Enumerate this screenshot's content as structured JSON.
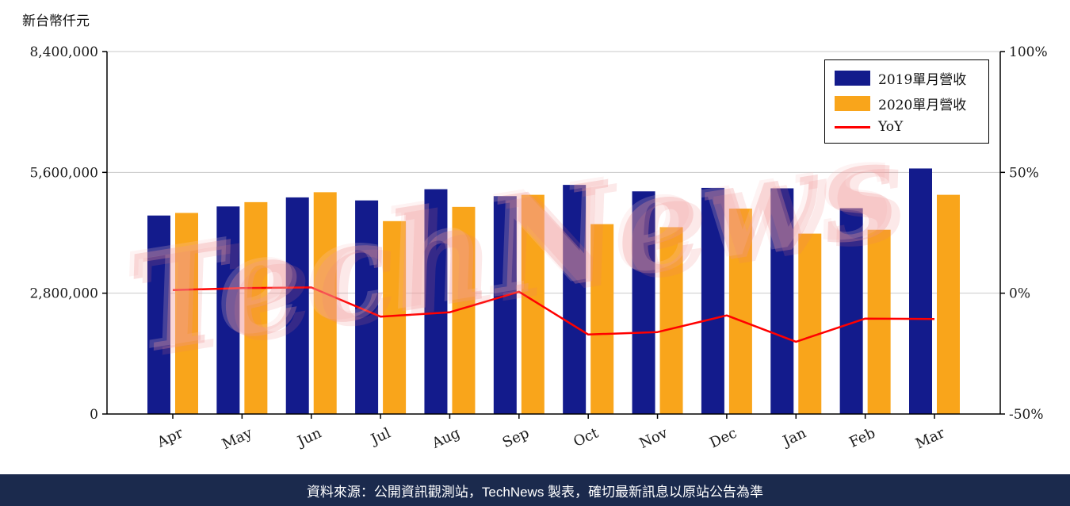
{
  "unit_label": "新台幣仟元",
  "watermark_text": "TechNews",
  "footer": {
    "text": "資料來源：公開資訊觀測站，TechNews 製表，確切最新訊息以原站公告為準"
  },
  "colors": {
    "bar_2019": "#131B8C",
    "bar_2020": "#F9A51B",
    "yoy_line": "#FF0000",
    "footer_bg": "#1B2A4D",
    "grid": "#C9C9C9",
    "axis": "#000000",
    "watermark": "#F09696"
  },
  "chart_data": {
    "type": "bar",
    "categories": [
      "Apr",
      "May",
      "Jun",
      "Jul",
      "Aug",
      "Sep",
      "Oct",
      "Nov",
      "Dec",
      "Jan",
      "Feb",
      "Mar"
    ],
    "series": [
      {
        "name": "2019單月營收",
        "type": "bar",
        "axis": "left",
        "color": "#131B8C",
        "values": [
          4600000,
          4810000,
          5020000,
          4950000,
          5210000,
          5050000,
          5310000,
          5160000,
          5240000,
          5230000,
          4770000,
          5690000
        ]
      },
      {
        "name": "2020單月營收",
        "type": "bar",
        "axis": "left",
        "color": "#F9A51B",
        "values": [
          4660000,
          4910000,
          5140000,
          4470000,
          4800000,
          5080000,
          4400000,
          4330000,
          4760000,
          4180000,
          4270000,
          5080000
        ]
      },
      {
        "name": "YoY",
        "type": "line",
        "axis": "right",
        "color": "#FF0000",
        "values": [
          1.3,
          2.1,
          2.4,
          -9.7,
          -7.9,
          0.6,
          -17.1,
          -16.1,
          -9.2,
          -20.1,
          -10.5,
          -10.7
        ]
      }
    ],
    "left_axis": {
      "label": "新台幣仟元",
      "min": 0,
      "max": 8400000,
      "ticks": [
        {
          "value": 0,
          "label": "0"
        },
        {
          "value": 2800000,
          "label": "2,800,000"
        },
        {
          "value": 5600000,
          "label": "5,600,000"
        },
        {
          "value": 8400000,
          "label": "8,400,000"
        }
      ]
    },
    "right_axis": {
      "unit": "%",
      "min": -50,
      "max": 100,
      "ticks": [
        {
          "value": -50,
          "label": "-50%"
        },
        {
          "value": 0,
          "label": "0%"
        },
        {
          "value": 50,
          "label": "50%"
        },
        {
          "value": 100,
          "label": "100%"
        }
      ]
    },
    "legend_position": "top-right",
    "grid": true
  }
}
